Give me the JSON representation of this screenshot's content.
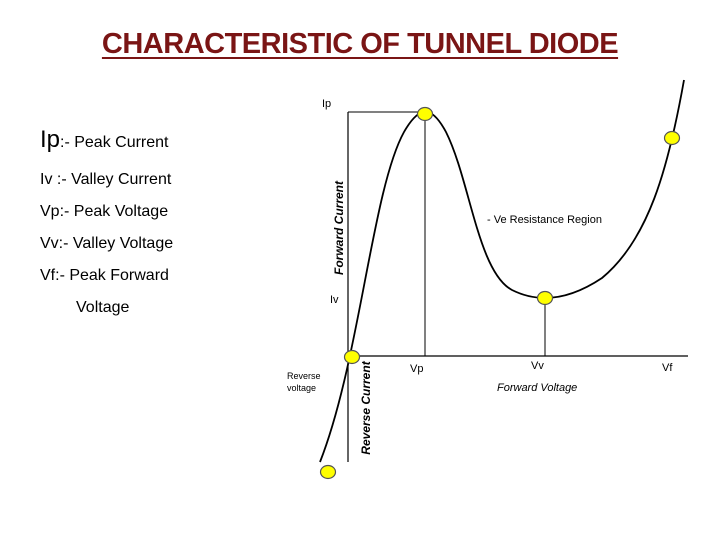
{
  "title": "CHARACTERISTIC OF TUNNEL DIODE",
  "legend": {
    "ip_symbol": "Ip",
    "ip_text": ":- Peak Current",
    "iv": "Iv :- Valley Current",
    "vp": "Vp:- Peak Voltage",
    "vv": "Vv:- Valley Voltage",
    "vf_line1": "Vf:-  Peak Forward",
    "vf_line2": "Voltage"
  },
  "diagram": {
    "y_axis_top_label": "Ip",
    "forward_current_label": "Forward Current",
    "reverse_current_label": "Reverse Current",
    "valley_current_label": "Iv",
    "neg_resistance_label": "- Ve Resistance Region",
    "reverse_voltage_line1": "Reverse",
    "reverse_voltage_line2": "voltage",
    "vp_label": "Vp",
    "vv_label": "Vv",
    "vf_label": "Vf",
    "forward_voltage_label": "Forward Voltage"
  },
  "colors": {
    "title": "#7a1515",
    "marker_fill": "#ffff00",
    "marker_stroke": "#555555",
    "curve": "#000000"
  }
}
